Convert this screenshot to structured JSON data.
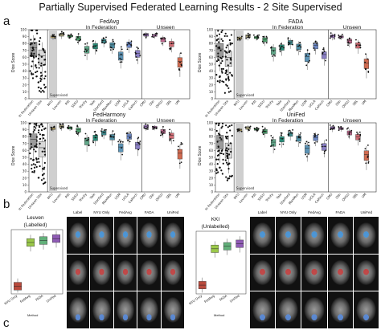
{
  "figure_title": "Partially Supervised Federated Learning Results  - 2 Site Supervised",
  "panel_labels": {
    "a": "a",
    "b": "b",
    "c": "c"
  },
  "section_labels": {
    "in_federation": "In Federation",
    "unseen": "Unseen"
  },
  "y_axis_label": "Dice Score",
  "y_ticks": [
    "100",
    "90",
    "80",
    "70",
    "60",
    "50",
    "40",
    "30",
    "20",
    "10",
    "0"
  ],
  "supervised_label": "Supervised",
  "panels": [
    {
      "name": "FedAvg"
    },
    {
      "name": "FADA"
    },
    {
      "name": "FedHarmony"
    },
    {
      "name": "UniFed"
    }
  ],
  "x_categories": [
    "In Federation",
    "Unseen Site",
    "NYU",
    "Leuven",
    "Pitt",
    "SDSU",
    "Trinity",
    "Yale",
    "Stanford",
    "MaxMun",
    "USM",
    "UCLA",
    "Caltech",
    "CMU",
    "Olin",
    "OHSU",
    "SBL",
    "UM"
  ],
  "box_colors": [
    "#9b9b9b",
    "#d9d9d9",
    "#c7b26e",
    "#a6a07a",
    "#3a8f52",
    "#4a9c6a",
    "#62a88a",
    "#2a8d7a",
    "#3f8b8f",
    "#4e8fa5",
    "#5d94b6",
    "#6a86c3",
    "#8a7fc4",
    "#9c74bf",
    "#b86fb3",
    "#c46c93",
    "#cf6b73",
    "#d06b51"
  ],
  "panel_b": {
    "left_title": "Leuven",
    "left_subtitle": "(Labelled)",
    "right_title": "KKI",
    "right_subtitle": "(Unlabelled)",
    "x_label": "Method",
    "methods": [
      "NYU Only",
      "FedAvg",
      "FADA",
      "UniFed"
    ],
    "method_colors": [
      "#b94a3d",
      "#9bc94a",
      "#62b07a",
      "#8f5bb5"
    ],
    "image_columns": [
      "Label",
      "NYU Only",
      "FedAvg",
      "FADA",
      "UniFed"
    ]
  }
}
